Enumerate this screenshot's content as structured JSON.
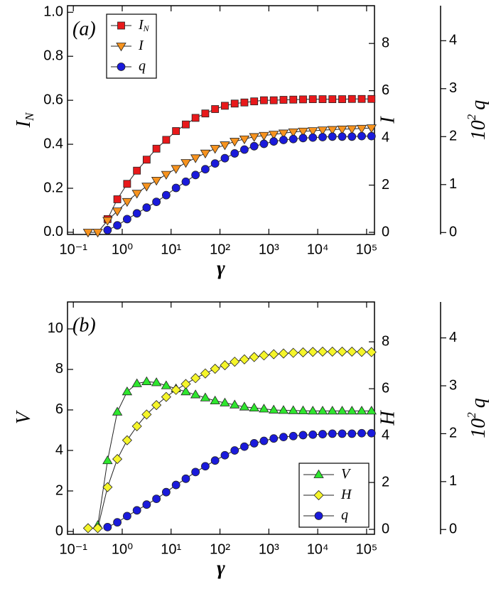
{
  "chart_data": [
    {
      "type": "line",
      "annotation": "(a)",
      "xscale": "log",
      "legend": "upper left",
      "x_label": "γ",
      "y_label": "I",
      "y_label_sub": "N",
      "y2_label": "I",
      "y3_label_base": "10",
      "y3_label_sup": "2",
      "y3_label_var": "q",
      "x": [
        0.2,
        0.316,
        0.501,
        0.794,
        1.26,
        2.0,
        3.16,
        5.01,
        7.94,
        12.6,
        20.0,
        31.6,
        50.1,
        79.4,
        126,
        200,
        316,
        501,
        794,
        1259,
        1995,
        3162,
        5012,
        7943,
        12589,
        19953,
        31623,
        50119,
        79433,
        125893
      ],
      "xlim": [
        0.076,
        145000
      ],
      "xticks": [
        {
          "value": 0.1,
          "label": "10⁻¹"
        },
        {
          "value": 1,
          "label": "10⁰"
        },
        {
          "value": 10,
          "label": "10¹"
        },
        {
          "value": 100,
          "label": "10²"
        },
        {
          "value": 1000,
          "label": "10³"
        },
        {
          "value": 10000,
          "label": "10⁴"
        },
        {
          "value": 100000,
          "label": "10⁵"
        }
      ],
      "ylim": [
        -0.01,
        1.03
      ],
      "yticks": [
        {
          "value": 0,
          "label": "0.0"
        },
        0.2,
        0.4,
        0.6,
        0.8,
        {
          "value": 1,
          "label": "1.0"
        }
      ],
      "y2lim": [
        -0.09,
        9.6
      ],
      "y2ticks": [
        0,
        2,
        4,
        6,
        8
      ],
      "y3lim": [
        -0.04,
        4.73
      ],
      "y3ticks": [
        0,
        1,
        2,
        3,
        4
      ],
      "series": [
        {
          "name": "I",
          "name_sub": "N",
          "axis": "y",
          "marker": "square",
          "color": "#e8191b",
          "values": [
            null,
            null,
            0.06,
            0.15,
            0.22,
            0.28,
            0.33,
            0.38,
            0.42,
            0.46,
            0.49,
            0.52,
            0.54,
            0.56,
            0.575,
            0.585,
            0.59,
            0.595,
            0.6,
            0.6,
            0.602,
            0.603,
            0.604,
            0.605,
            0.605,
            0.605,
            0.605,
            0.606,
            0.606,
            0.606
          ]
        },
        {
          "name": "I",
          "axis": "y2",
          "marker": "triangle-down",
          "color": "#f7931e",
          "values": [
            0,
            0,
            0.5,
            0.9,
            1.3,
            1.65,
            1.95,
            2.2,
            2.45,
            2.7,
            2.95,
            3.15,
            3.35,
            3.55,
            3.7,
            3.85,
            3.95,
            4.05,
            4.1,
            4.15,
            4.2,
            4.25,
            4.28,
            4.3,
            4.33,
            4.35,
            4.37,
            4.38,
            4.4,
            4.42
          ]
        },
        {
          "name": "q",
          "axis": "y3",
          "marker": "circle",
          "color": "#1a1adb",
          "values": [
            null,
            null,
            0.05,
            0.15,
            0.28,
            0.4,
            0.52,
            0.64,
            0.78,
            0.93,
            1.06,
            1.2,
            1.32,
            1.44,
            1.55,
            1.65,
            1.73,
            1.8,
            1.85,
            1.9,
            1.93,
            1.95,
            1.97,
            1.98,
            1.99,
            2.0,
            2.0,
            2.0,
            2.01,
            2.01
          ]
        }
      ]
    },
    {
      "type": "line",
      "annotation": "(b)",
      "xscale": "log",
      "legend": "lower right",
      "x_label": "γ",
      "y_label": "V",
      "y2_label": "H",
      "y3_label_base": "10",
      "y3_label_sup": "2",
      "y3_label_var": "q",
      "x": [
        0.2,
        0.316,
        0.501,
        0.794,
        1.26,
        2.0,
        3.16,
        5.01,
        7.94,
        12.6,
        20.0,
        31.6,
        50.1,
        79.4,
        126,
        200,
        316,
        501,
        794,
        1259,
        1995,
        3162,
        5012,
        7943,
        12589,
        19953,
        31623,
        50119,
        79433,
        125893
      ],
      "xlim": [
        0.076,
        145000
      ],
      "xticks": [
        {
          "value": 0.1,
          "label": "10⁻¹"
        },
        {
          "value": 1,
          "label": "10⁰"
        },
        {
          "value": 10,
          "label": "10¹"
        },
        {
          "value": 100,
          "label": "10²"
        },
        {
          "value": 1000,
          "label": "10³"
        },
        {
          "value": 10000,
          "label": "10⁴"
        },
        {
          "value": 100000,
          "label": "10⁵"
        }
      ],
      "ylim": [
        -0.14,
        11.33
      ],
      "yticks": [
        0,
        2,
        4,
        6,
        8,
        10
      ],
      "y2lim": [
        -0.21,
        9.7
      ],
      "y2ticks": [
        0,
        2,
        4,
        6,
        8
      ],
      "y3lim": [
        -0.1,
        4.75
      ],
      "y3ticks": [
        0,
        1,
        2,
        3,
        4
      ],
      "series": [
        {
          "name": "V",
          "axis": "y",
          "marker": "triangle-up",
          "color": "#2ee62e",
          "values": [
            null,
            0.3,
            3.5,
            5.9,
            6.9,
            7.3,
            7.4,
            7.35,
            7.2,
            7.05,
            6.9,
            6.75,
            6.6,
            6.45,
            6.35,
            6.25,
            6.15,
            6.1,
            6.05,
            6.0,
            5.98,
            5.97,
            5.96,
            5.95,
            5.95,
            5.95,
            5.95,
            5.95,
            5.95,
            5.95
          ]
        },
        {
          "name": "H",
          "axis": "y2",
          "marker": "diamond",
          "color": "#f5f52a",
          "values": [
            0.05,
            0.05,
            1.8,
            3.0,
            3.8,
            4.4,
            4.9,
            5.3,
            5.65,
            5.95,
            6.2,
            6.45,
            6.65,
            6.85,
            7.0,
            7.15,
            7.25,
            7.35,
            7.42,
            7.47,
            7.5,
            7.53,
            7.55,
            7.57,
            7.58,
            7.58,
            7.58,
            7.58,
            7.57,
            7.56
          ]
        },
        {
          "name": "q",
          "axis": "y3",
          "marker": "circle",
          "color": "#1a1adb",
          "values": [
            null,
            null,
            0.05,
            0.15,
            0.28,
            0.4,
            0.52,
            0.64,
            0.78,
            0.93,
            1.06,
            1.2,
            1.32,
            1.44,
            1.55,
            1.65,
            1.73,
            1.8,
            1.85,
            1.9,
            1.93,
            1.95,
            1.97,
            1.98,
            1.99,
            2.0,
            2.0,
            2.0,
            2.01,
            2.01
          ]
        }
      ]
    }
  ]
}
